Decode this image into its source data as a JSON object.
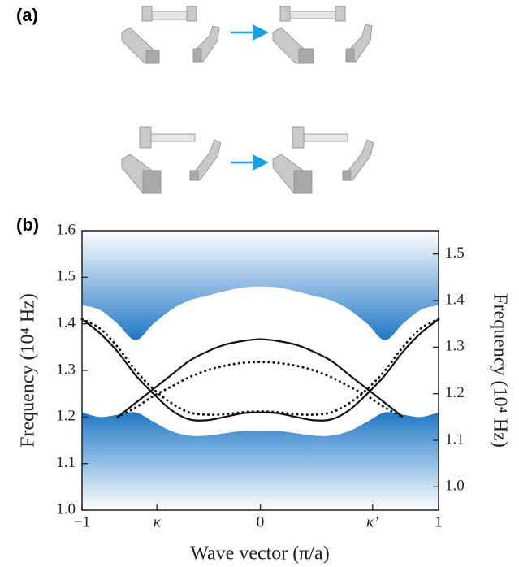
{
  "panel_labels": [
    "(a)",
    "(b)"
  ],
  "chart_data": {
    "type": "line",
    "xlabel": "Wave vector (π/a)",
    "ylabel": "Frequency (10⁴ Hz)",
    "y2label": "Frequency (10⁴ Hz)",
    "x": [
      -1,
      -0.9,
      -0.8,
      -0.7,
      -0.6,
      -0.5,
      -0.4,
      -0.3,
      -0.2,
      -0.1,
      0,
      0.1,
      0.2,
      0.3,
      0.4,
      0.5,
      0.6,
      0.7,
      0.8,
      0.9,
      1
    ],
    "xlim": [
      -1,
      1
    ],
    "xticks": [
      {
        "value": -1,
        "label": "−1"
      },
      {
        "value": -0.58,
        "label": "κ"
      },
      0,
      {
        "value": 0.63,
        "label": "κ’"
      },
      1
    ],
    "ylim": [
      1.0,
      1.6
    ],
    "yticks": [
      {
        "value": 1,
        "label": "1.0"
      },
      1.1,
      1.2,
      1.3,
      1.4,
      1.5,
      1.6
    ],
    "y2lim": [
      0.95,
      1.55
    ],
    "y2ticks": [
      {
        "value": 1,
        "label": "1.0"
      },
      1.1,
      1.2,
      1.3,
      1.4,
      1.5
    ],
    "series": [
      {
        "style": "fill-above",
        "color": "#1f78c6",
        "values": [
          1.44,
          1.43,
          1.4,
          1.365,
          1.4,
          1.43,
          1.45,
          1.46,
          1.47,
          1.478,
          1.48,
          1.478,
          1.47,
          1.46,
          1.45,
          1.43,
          1.4,
          1.365,
          1.4,
          1.43,
          1.44
        ]
      },
      {
        "style": "fill-below",
        "color": "#1f78c6",
        "values": [
          1.21,
          1.2,
          1.205,
          1.21,
          1.19,
          1.17,
          1.16,
          1.16,
          1.165,
          1.17,
          1.17,
          1.17,
          1.165,
          1.16,
          1.16,
          1.17,
          1.19,
          1.21,
          1.205,
          1.2,
          1.21
        ]
      },
      {
        "style": "solid",
        "color": "#111111",
        "values": [
          1.41,
          1.38,
          1.34,
          1.29,
          1.25,
          1.215,
          1.195,
          1.193,
          1.2,
          1.208,
          1.21,
          1.208,
          1.2,
          1.193,
          1.195,
          1.215,
          1.25,
          1.29,
          1.34,
          1.38,
          1.41
        ]
      },
      {
        "style": "solid",
        "color": "#111111",
        "values": [
          null,
          null,
          1.2,
          1.23,
          1.26,
          1.29,
          1.32,
          1.34,
          1.355,
          1.363,
          1.367,
          1.363,
          1.355,
          1.34,
          1.32,
          1.29,
          1.26,
          1.23,
          1.2,
          null,
          null
        ]
      },
      {
        "style": "dotted",
        "color": "#111111",
        "values": [
          1.41,
          1.39,
          1.35,
          1.3,
          1.26,
          1.23,
          1.21,
          1.205,
          1.206,
          1.21,
          1.212,
          1.21,
          1.206,
          1.205,
          1.21,
          1.23,
          1.26,
          1.3,
          1.35,
          1.39,
          1.41
        ]
      },
      {
        "style": "dotted",
        "color": "#111111",
        "values": [
          null,
          null,
          1.2,
          1.22,
          1.245,
          1.265,
          1.285,
          1.3,
          1.31,
          1.316,
          1.318,
          1.316,
          1.31,
          1.3,
          1.285,
          1.265,
          1.245,
          1.22,
          1.2,
          null,
          null
        ]
      }
    ]
  }
}
